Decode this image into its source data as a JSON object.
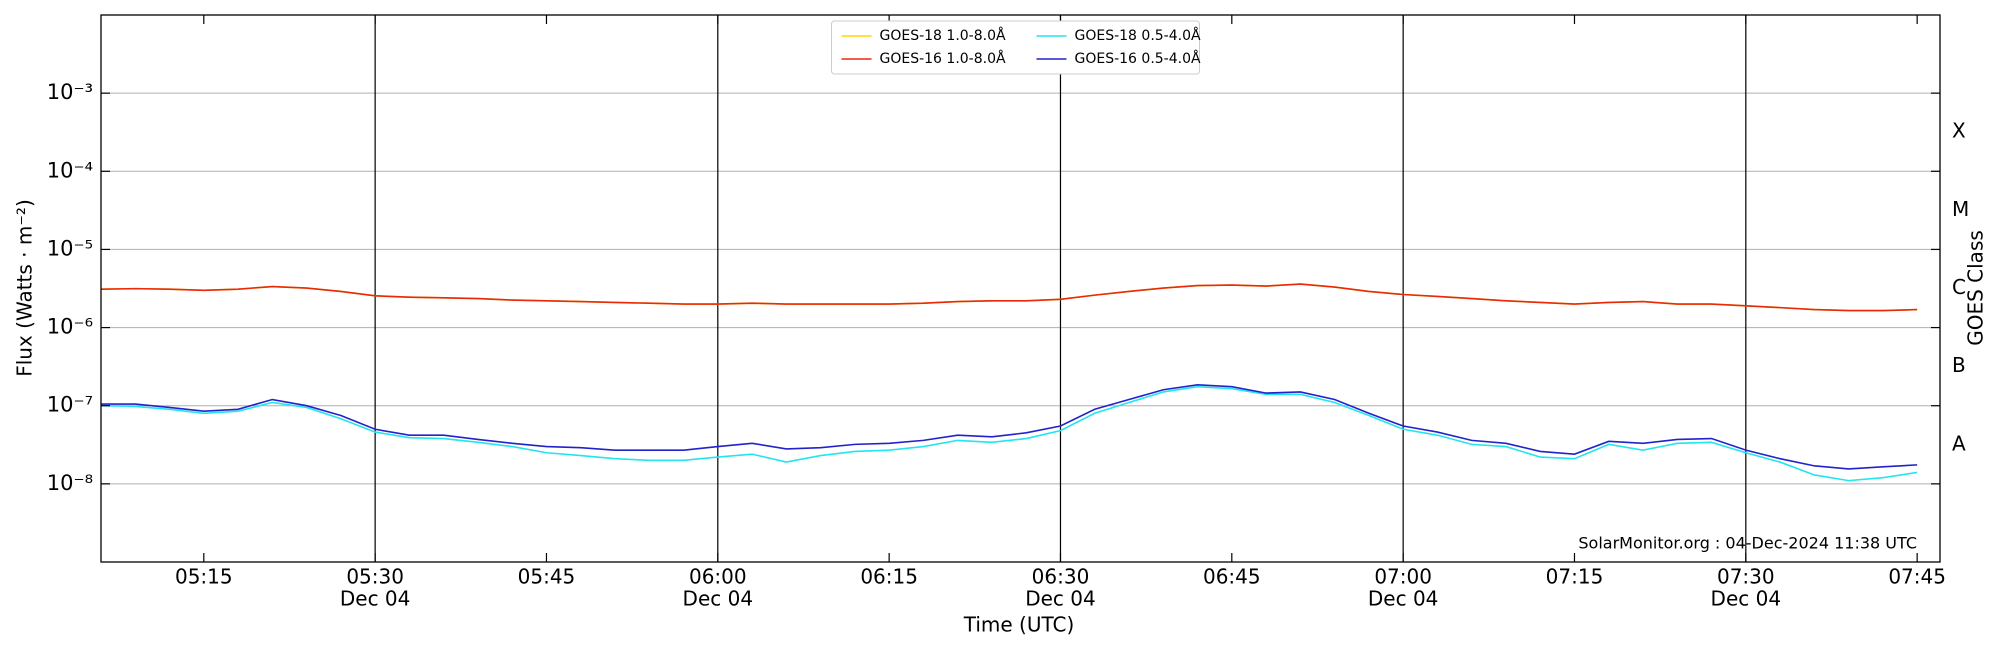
{
  "chart_data": {
    "type": "line",
    "xlabel": "Time (UTC)",
    "ylabel": "Flux (Watts · m⁻²)",
    "y2label": "GOES Class",
    "annotation": "SolarMonitor.org : 04-Dec-2024 11:38 UTC",
    "log_y": true,
    "grid": true,
    "legend": "upper center",
    "ylim": [
      1e-09,
      0.01
    ],
    "yticks": [
      {
        "value": 1e-08,
        "label": "10⁻⁸"
      },
      {
        "value": 1e-07,
        "label": "10⁻⁷"
      },
      {
        "value": 1e-06,
        "label": "10⁻⁶"
      },
      {
        "value": 1e-05,
        "label": "10⁻⁵"
      },
      {
        "value": 0.0001,
        "label": "10⁻⁴"
      },
      {
        "value": 0.001,
        "label": "10⁻³"
      }
    ],
    "classes": [
      {
        "label": "A",
        "value": 3.16e-08
      },
      {
        "label": "B",
        "value": 3.16e-07
      },
      {
        "label": "C",
        "value": 3.16e-06
      },
      {
        "label": "M",
        "value": 3.16e-05
      },
      {
        "label": "X",
        "value": 0.000316
      }
    ],
    "xlim": [
      "05:06",
      "07:47"
    ],
    "xticks": [
      "05:15",
      "05:30",
      "05:45",
      "06:00",
      "06:15",
      "06:30",
      "06:45",
      "07:00",
      "07:15",
      "07:30",
      "07:45"
    ],
    "xtick_dates": [
      null,
      "Dec 04",
      null,
      "Dec 04",
      null,
      "Dec 04",
      null,
      "Dec 04",
      null,
      "Dec 04",
      null
    ],
    "x": [
      "05:06",
      "05:09",
      "05:12",
      "05:15",
      "05:18",
      "05:21",
      "05:24",
      "05:27",
      "05:30",
      "05:33",
      "05:36",
      "05:39",
      "05:42",
      "05:45",
      "05:48",
      "05:51",
      "05:54",
      "05:57",
      "06:00",
      "06:03",
      "06:06",
      "06:09",
      "06:12",
      "06:15",
      "06:18",
      "06:21",
      "06:24",
      "06:27",
      "06:30",
      "06:33",
      "06:36",
      "06:39",
      "06:42",
      "06:45",
      "06:48",
      "06:51",
      "06:54",
      "06:57",
      "07:00",
      "07:03",
      "07:06",
      "07:09",
      "07:12",
      "07:15",
      "07:18",
      "07:21",
      "07:24",
      "07:27",
      "07:30",
      "07:33",
      "07:36",
      "07:39",
      "07:42",
      "07:45"
    ],
    "series": [
      {
        "name": "GOES-18 1.0-8.0Å",
        "color": "#ffd700",
        "values": [
          3.1e-06,
          3.15e-06,
          3.1e-06,
          3e-06,
          3.1e-06,
          3.35e-06,
          3.2e-06,
          2.9e-06,
          2.55e-06,
          2.45e-06,
          2.4e-06,
          2.35e-06,
          2.25e-06,
          2.2e-06,
          2.15e-06,
          2.1e-06,
          2.05e-06,
          2e-06,
          2e-06,
          2.05e-06,
          2e-06,
          2e-06,
          2e-06,
          2e-06,
          2.05e-06,
          2.15e-06,
          2.2e-06,
          2.2e-06,
          2.3e-06,
          2.6e-06,
          2.9e-06,
          3.2e-06,
          3.45e-06,
          3.5e-06,
          3.4e-06,
          3.6e-06,
          3.3e-06,
          2.9e-06,
          2.65e-06,
          2.5e-06,
          2.35e-06,
          2.2e-06,
          2.1e-06,
          2e-06,
          2.1e-06,
          2.15e-06,
          2e-06,
          2e-06,
          1.9e-06,
          1.8e-06,
          1.7e-06,
          1.65e-06,
          1.65e-06,
          1.7e-06
        ]
      },
      {
        "name": "GOES-16 1.0-8.0Å",
        "color": "#e8290b",
        "values": [
          3.1e-06,
          3.15e-06,
          3.1e-06,
          3e-06,
          3.1e-06,
          3.35e-06,
          3.2e-06,
          2.9e-06,
          2.55e-06,
          2.45e-06,
          2.4e-06,
          2.35e-06,
          2.25e-06,
          2.2e-06,
          2.15e-06,
          2.1e-06,
          2.05e-06,
          2e-06,
          2e-06,
          2.05e-06,
          2e-06,
          2e-06,
          2e-06,
          2e-06,
          2.05e-06,
          2.15e-06,
          2.2e-06,
          2.2e-06,
          2.3e-06,
          2.6e-06,
          2.9e-06,
          3.2e-06,
          3.45e-06,
          3.5e-06,
          3.4e-06,
          3.6e-06,
          3.3e-06,
          2.9e-06,
          2.65e-06,
          2.5e-06,
          2.35e-06,
          2.2e-06,
          2.1e-06,
          2e-06,
          2.1e-06,
          2.15e-06,
          2e-06,
          2e-06,
          1.9e-06,
          1.8e-06,
          1.7e-06,
          1.65e-06,
          1.65e-06,
          1.7e-06
        ]
      },
      {
        "name": "GOES-18 0.5-4.0Å",
        "color": "#22e5ee",
        "values": [
          1e-07,
          9.8e-08,
          9e-08,
          8e-08,
          8.5e-08,
          1.1e-07,
          9.5e-08,
          6.8e-08,
          4.6e-08,
          3.9e-08,
          3.8e-08,
          3.4e-08,
          3e-08,
          2.5e-08,
          2.3e-08,
          2.1e-08,
          2e-08,
          2e-08,
          2.2e-08,
          2.4e-08,
          1.9e-08,
          2.3e-08,
          2.6e-08,
          2.7e-08,
          3e-08,
          3.6e-08,
          3.4e-08,
          3.8e-08,
          4.8e-08,
          8e-08,
          1.1e-07,
          1.5e-07,
          1.75e-07,
          1.65e-07,
          1.4e-07,
          1.4e-07,
          1.1e-07,
          7.5e-08,
          5e-08,
          4.2e-08,
          3.2e-08,
          3e-08,
          2.2e-08,
          2.1e-08,
          3.2e-08,
          2.7e-08,
          3.3e-08,
          3.4e-08,
          2.5e-08,
          1.9e-08,
          1.3e-08,
          1.1e-08,
          1.2e-08,
          1.4e-08
        ]
      },
      {
        "name": "GOES-16 0.5-4.0Å",
        "color": "#2222cc",
        "values": [
          1.05e-07,
          1.05e-07,
          9.5e-08,
          8.5e-08,
          9e-08,
          1.2e-07,
          1e-07,
          7.5e-08,
          5e-08,
          4.2e-08,
          4.2e-08,
          3.7e-08,
          3.3e-08,
          3e-08,
          2.9e-08,
          2.7e-08,
          2.7e-08,
          2.7e-08,
          3e-08,
          3.3e-08,
          2.8e-08,
          2.9e-08,
          3.2e-08,
          3.3e-08,
          3.6e-08,
          4.2e-08,
          4e-08,
          4.5e-08,
          5.5e-08,
          9e-08,
          1.2e-07,
          1.6e-07,
          1.85e-07,
          1.75e-07,
          1.45e-07,
          1.5e-07,
          1.2e-07,
          8e-08,
          5.5e-08,
          4.6e-08,
          3.6e-08,
          3.3e-08,
          2.6e-08,
          2.4e-08,
          3.5e-08,
          3.3e-08,
          3.7e-08,
          3.8e-08,
          2.7e-08,
          2.1e-08,
          1.7e-08,
          1.55e-08,
          1.65e-08,
          1.75e-08
        ]
      }
    ]
  }
}
